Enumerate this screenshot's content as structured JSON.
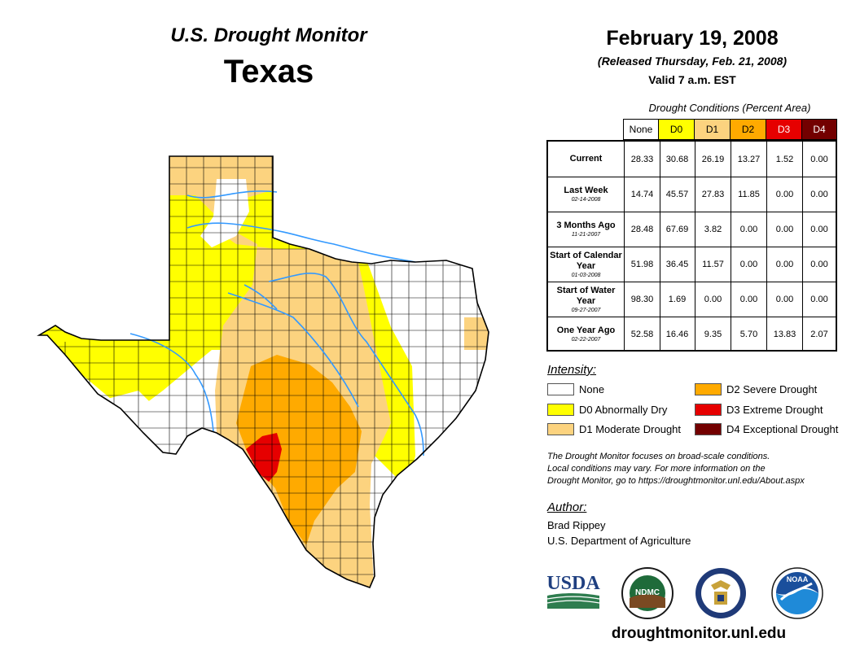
{
  "header": {
    "subtitle": "U.S. Drought Monitor",
    "title": "Texas"
  },
  "release": {
    "date": "February 19, 2008",
    "released": "(Released Thursday, Feb. 21, 2008)",
    "valid": "Valid 7 a.m. EST"
  },
  "table": {
    "caption": "Drought Conditions (Percent Area)",
    "columns": [
      {
        "label": "None",
        "color": "#ffffff",
        "text": "#000000"
      },
      {
        "label": "D0",
        "color": "#ffff00",
        "text": "#000000"
      },
      {
        "label": "D1",
        "color": "#fcd37f",
        "text": "#000000"
      },
      {
        "label": "D2",
        "color": "#ffaa00",
        "text": "#000000"
      },
      {
        "label": "D3",
        "color": "#e60000",
        "text": "#ffffff"
      },
      {
        "label": "D4",
        "color": "#730000",
        "text": "#ffffff"
      }
    ],
    "rows": [
      {
        "label": "Current",
        "date": "",
        "values": [
          "28.33",
          "30.68",
          "26.19",
          "13.27",
          "1.52",
          "0.00"
        ]
      },
      {
        "label": "Last Week",
        "date": "02-14-2008",
        "values": [
          "14.74",
          "45.57",
          "27.83",
          "11.85",
          "0.00",
          "0.00"
        ]
      },
      {
        "label": "3 Months Ago",
        "date": "11-21-2007",
        "values": [
          "28.48",
          "67.69",
          "3.82",
          "0.00",
          "0.00",
          "0.00"
        ]
      },
      {
        "label": "Start of Calendar Year",
        "date": "01-03-2008",
        "values": [
          "51.98",
          "36.45",
          "11.57",
          "0.00",
          "0.00",
          "0.00"
        ]
      },
      {
        "label": "Start of Water Year",
        "date": "09-27-2007",
        "values": [
          "98.30",
          "1.69",
          "0.00",
          "0.00",
          "0.00",
          "0.00"
        ]
      },
      {
        "label": "One Year Ago",
        "date": "02-22-2007",
        "values": [
          "52.58",
          "16.46",
          "9.35",
          "5.70",
          "13.83",
          "2.07"
        ]
      }
    ]
  },
  "legend": {
    "title": "Intensity:",
    "items": [
      {
        "label": "None",
        "color": "#ffffff"
      },
      {
        "label": "D0 Abnormally Dry",
        "color": "#ffff00"
      },
      {
        "label": "D1 Moderate Drought",
        "color": "#fcd37f"
      },
      {
        "label": "D2 Severe Drought",
        "color": "#ffaa00"
      },
      {
        "label": "D3 Extreme Drought",
        "color": "#e60000"
      },
      {
        "label": "D4 Exceptional Drought",
        "color": "#730000"
      }
    ]
  },
  "disclaimer": [
    "The Drought Monitor focuses on broad-scale conditions.",
    "Local conditions may vary. For more information on the",
    "Drought Monitor, go to https://droughtmonitor.unl.edu/About.aspx"
  ],
  "author": {
    "title": "Author:",
    "name": "Brad Rippey",
    "org": "U.S. Department of Agriculture"
  },
  "logos": {
    "usda": "USDA",
    "ndmc": "NDMC",
    "noaa": "NOAA"
  },
  "website": "droughtmonitor.unl.edu",
  "colors": {
    "river": "#3399ff",
    "county_lines": "#000000"
  }
}
